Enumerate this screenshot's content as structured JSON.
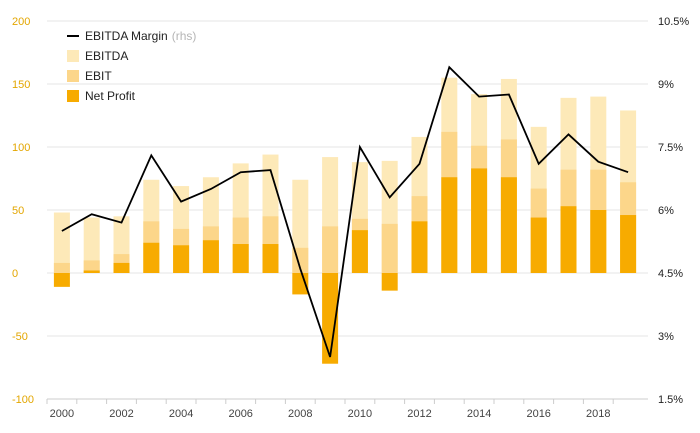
{
  "chart_data": {
    "type": "bar",
    "categories": [
      "2000",
      "2001",
      "2002",
      "2003",
      "2004",
      "2005",
      "2006",
      "2007",
      "2008",
      "2009",
      "2010",
      "2011",
      "2012",
      "2013",
      "2014",
      "2015",
      "2016",
      "2017",
      "2018",
      "2019"
    ],
    "x_tick_labels": [
      "2000",
      "2002",
      "2004",
      "2006",
      "2008",
      "2010",
      "2012",
      "2014",
      "2016",
      "2018"
    ],
    "series": [
      {
        "name": "EBITDA",
        "kind": "bar",
        "axis": "left",
        "color": "#fde9b8",
        "values": [
          48,
          44,
          45,
          74,
          69,
          76,
          87,
          94,
          74,
          92,
          88,
          89,
          108,
          155,
          142,
          154,
          116,
          139,
          140,
          129
        ]
      },
      {
        "name": "EBIT",
        "kind": "bar",
        "axis": "left",
        "color": "#fcd68a",
        "values": [
          8,
          10,
          15,
          41,
          35,
          37,
          44,
          45,
          20,
          37,
          43,
          39,
          61,
          112,
          101,
          106,
          67,
          82,
          82,
          72
        ]
      },
      {
        "name": "Net Profit",
        "kind": "bar",
        "axis": "left",
        "color": "#f7ab00",
        "values": [
          -11,
          2,
          8,
          24,
          22,
          26,
          23,
          23,
          -17,
          -72,
          34,
          -14,
          41,
          76,
          83,
          76,
          44,
          53,
          50,
          46
        ]
      },
      {
        "name": "EBITDA Margin",
        "name_suffix": "(rhs)",
        "kind": "line",
        "axis": "right",
        "color": "#000000",
        "values": [
          5.5,
          5.9,
          5.7,
          7.3,
          6.2,
          6.5,
          6.9,
          6.95,
          4.6,
          2.5,
          7.5,
          6.3,
          7.1,
          9.4,
          8.7,
          8.75,
          7.1,
          7.8,
          7.15,
          6.9
        ]
      }
    ],
    "left_axis": {
      "min": -100,
      "max": 200,
      "ticks": [
        200,
        150,
        100,
        50,
        0,
        -50,
        -100
      ],
      "tick_labels": [
        "200",
        "150",
        "100",
        "50",
        "0",
        "-50",
        "-100"
      ]
    },
    "right_axis": {
      "min": 1.5,
      "max": 10.5,
      "ticks": [
        10.5,
        9,
        7.5,
        6,
        4.5,
        3,
        1.5
      ],
      "tick_labels": [
        "10.5%",
        "9%",
        "7.5%",
        "6%",
        "4.5%",
        "3%",
        "1.5%"
      ]
    },
    "grid": true,
    "legend_position": "top-left",
    "legend_order": [
      "EBITDA Margin",
      "EBITDA",
      "EBIT",
      "Net Profit"
    ]
  }
}
